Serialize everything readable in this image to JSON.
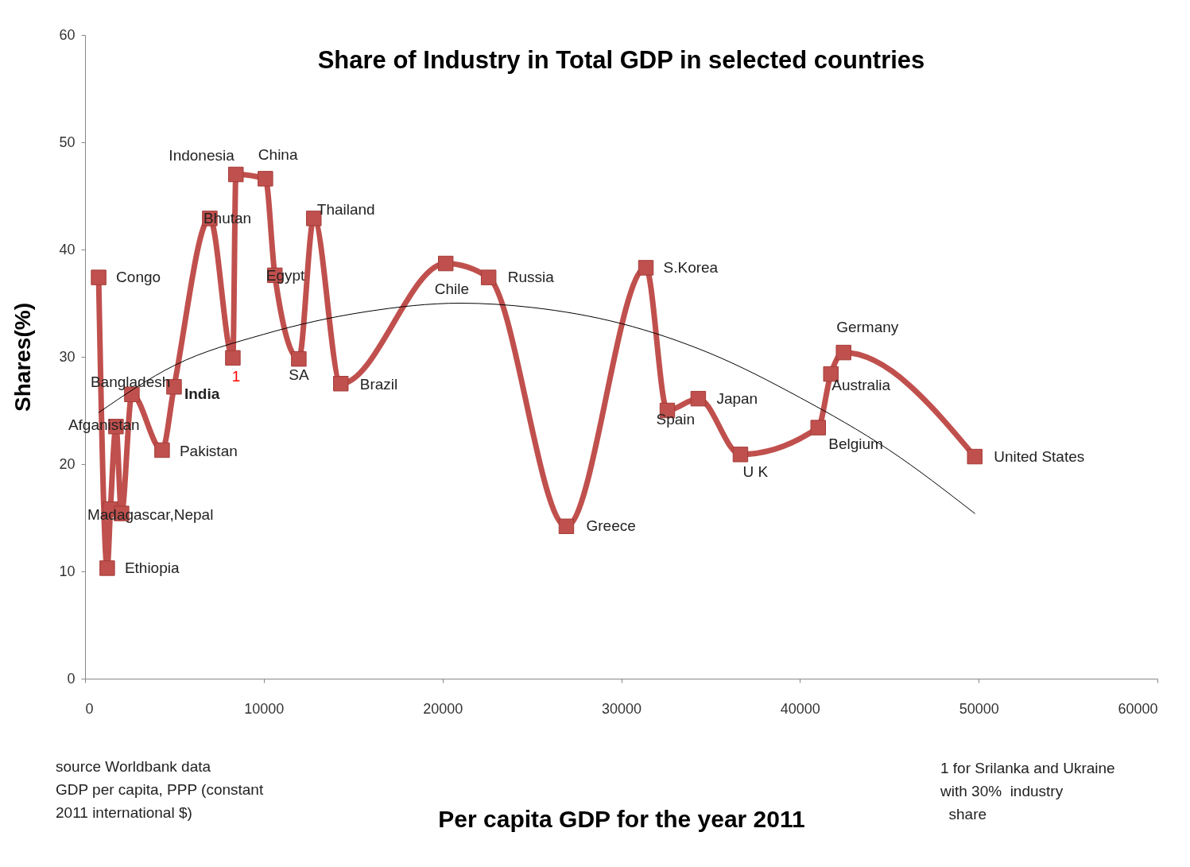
{
  "chart_data": {
    "type": "line",
    "title": "Share of Industry in Total GDP in selected countries",
    "xlabel": "Per capita GDP for the year 2011",
    "ylabel": "Shares(%)",
    "xlim": [
      0,
      60000
    ],
    "ylim": [
      0,
      60
    ],
    "xticks": [
      0,
      10000,
      20000,
      30000,
      40000,
      50000,
      60000
    ],
    "yticks": [
      0,
      10,
      20,
      30,
      40,
      50,
      60
    ],
    "grid": false,
    "marker": "square",
    "series": [
      {
        "color": "#c0504d",
        "x": [
          760,
          1240,
          1420,
          1730,
          2040,
          2620,
          4310,
          4980,
          6980,
          8270,
          8440,
          10090,
          10620,
          11960,
          12800,
          14310,
          20180,
          22580,
          26930,
          31380,
          32580,
          34310,
          36670,
          41020,
          41730,
          42440,
          49780
        ],
        "values": [
          37.4,
          10.3,
          15.8,
          23.5,
          15.4,
          26.5,
          21.3,
          27.2,
          42.9,
          29.9,
          47.0,
          46.6,
          37.6,
          29.8,
          42.9,
          27.5,
          38.7,
          37.4,
          14.2,
          38.3,
          25.0,
          26.1,
          20.9,
          23.4,
          28.4,
          30.4,
          20.7
        ]
      },
      {
        "type": "line",
        "marker": "none",
        "color": "#000000",
        "x": [
          760,
          5000,
          10000,
          15700,
          21000,
          25000,
          30000,
          35000,
          40000,
          45000,
          49780
        ],
        "values": [
          24.8,
          29.2,
          32.1,
          34.2,
          35.0,
          34.6,
          33.1,
          30.3,
          26.2,
          21.3,
          15.4
        ]
      }
    ],
    "annotations": [
      {
        "text": "Congo",
        "x": 760,
        "y": 37.4
      },
      {
        "text": "Ethiopia",
        "x": 1240,
        "y": 10.3
      },
      {
        "text": "Madagascar,Nepal",
        "x": 1420,
        "y": 15.8
      },
      {
        "text": "Afganistan",
        "x": 1730,
        "y": 23.5
      },
      {
        "text": "Bangladesh",
        "x": 2620,
        "y": 26.5
      },
      {
        "text": "Pakistan",
        "x": 4310,
        "y": 21.3
      },
      {
        "text": "India",
        "x": 4980,
        "y": 27.2
      },
      {
        "text": "Bhutan",
        "x": 6980,
        "y": 42.9
      },
      {
        "text": "1",
        "x": 8270,
        "y": 29.9
      },
      {
        "text": "Indonesia",
        "x": 8440,
        "y": 47.0
      },
      {
        "text": "China",
        "x": 10090,
        "y": 46.6
      },
      {
        "text": "Egypt",
        "x": 10620,
        "y": 37.6
      },
      {
        "text": "SA",
        "x": 11960,
        "y": 29.8
      },
      {
        "text": "Thailand",
        "x": 12800,
        "y": 42.9
      },
      {
        "text": "Brazil",
        "x": 14310,
        "y": 27.5
      },
      {
        "text": "Chile",
        "x": 20180,
        "y": 38.7
      },
      {
        "text": "Russia",
        "x": 22580,
        "y": 37.4
      },
      {
        "text": "Greece",
        "x": 26930,
        "y": 14.2
      },
      {
        "text": "S.Korea",
        "x": 31380,
        "y": 38.3
      },
      {
        "text": "Spain",
        "x": 32580,
        "y": 25.0
      },
      {
        "text": "Japan",
        "x": 34310,
        "y": 26.1
      },
      {
        "text": "U K",
        "x": 36670,
        "y": 20.9
      },
      {
        "text": "Belgium",
        "x": 41020,
        "y": 23.4
      },
      {
        "text": "Australia",
        "x": 41730,
        "y": 28.4
      },
      {
        "text": "Germany",
        "x": 42440,
        "y": 30.4
      },
      {
        "text": "United States",
        "x": 49780,
        "y": 20.7
      },
      "source Worldbank data\nGDP per capita, PPP (constant\n2011 international $)",
      "1 for Srilanka and Ukraine\nwith 30%  industry\n  share"
    ]
  }
}
